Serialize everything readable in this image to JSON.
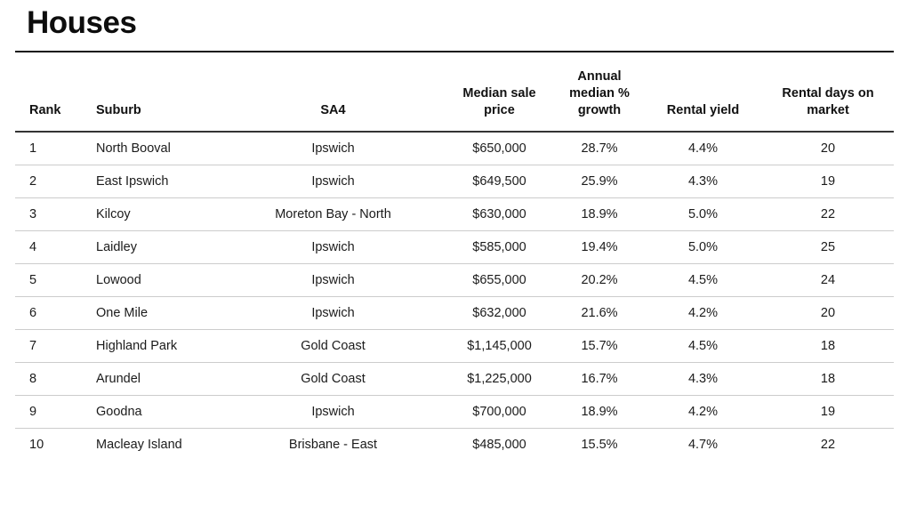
{
  "page": {
    "title": "Houses"
  },
  "colors": {
    "background": "#ffffff",
    "text": "#1b1b1b",
    "title_text": "#0d0d0d",
    "title_rule": "#161616",
    "header_rule": "#333333",
    "row_rule": "#cccccc"
  },
  "table": {
    "columns": [
      {
        "label": "Rank",
        "align": "left"
      },
      {
        "label": "Suburb",
        "align": "left"
      },
      {
        "label": "SA4",
        "align": "center"
      },
      {
        "label": "Median sale price",
        "align": "center"
      },
      {
        "label": "Annual median % growth",
        "align": "center"
      },
      {
        "label": "Rental yield",
        "align": "center"
      },
      {
        "label": "Rental days on market",
        "align": "center"
      }
    ],
    "rows": [
      [
        "1",
        "North Booval",
        "Ipswich",
        "$650,000",
        "28.7%",
        "4.4%",
        "20"
      ],
      [
        "2",
        "East Ipswich",
        "Ipswich",
        "$649,500",
        "25.9%",
        "4.3%",
        "19"
      ],
      [
        "3",
        "Kilcoy",
        "Moreton Bay - North",
        "$630,000",
        "18.9%",
        "5.0%",
        "22"
      ],
      [
        "4",
        "Laidley",
        "Ipswich",
        "$585,000",
        "19.4%",
        "5.0%",
        "25"
      ],
      [
        "5",
        "Lowood",
        "Ipswich",
        "$655,000",
        "20.2%",
        "4.5%",
        "24"
      ],
      [
        "6",
        "One Mile",
        "Ipswich",
        "$632,000",
        "21.6%",
        "4.2%",
        "20"
      ],
      [
        "7",
        "Highland Park",
        "Gold Coast",
        "$1,145,000",
        "15.7%",
        "4.5%",
        "18"
      ],
      [
        "8",
        "Arundel",
        "Gold Coast",
        "$1,225,000",
        "16.7%",
        "4.3%",
        "18"
      ],
      [
        "9",
        "Goodna",
        "Ipswich",
        "$700,000",
        "18.9%",
        "4.2%",
        "19"
      ],
      [
        "10",
        "Macleay Island",
        "Brisbane - East",
        "$485,000",
        "15.5%",
        "4.7%",
        "22"
      ]
    ]
  },
  "chart_data": {
    "type": "table",
    "title": "Houses",
    "columns": [
      "Rank",
      "Suburb",
      "SA4",
      "Median sale price",
      "Annual median % growth",
      "Rental yield",
      "Rental days on market"
    ],
    "rows": [
      [
        1,
        "North Booval",
        "Ipswich",
        650000,
        28.7,
        4.4,
        20
      ],
      [
        2,
        "East Ipswich",
        "Ipswich",
        649500,
        25.9,
        4.3,
        19
      ],
      [
        3,
        "Kilcoy",
        "Moreton Bay - North",
        630000,
        18.9,
        5.0,
        22
      ],
      [
        4,
        "Laidley",
        "Ipswich",
        585000,
        19.4,
        5.0,
        25
      ],
      [
        5,
        "Lowood",
        "Ipswich",
        655000,
        20.2,
        4.5,
        24
      ],
      [
        6,
        "One Mile",
        "Ipswich",
        632000,
        21.6,
        4.2,
        20
      ],
      [
        7,
        "Highland Park",
        "Gold Coast",
        1145000,
        15.7,
        4.5,
        18
      ],
      [
        8,
        "Arundel",
        "Gold Coast",
        1225000,
        16.7,
        4.3,
        18
      ],
      [
        9,
        "Goodna",
        "Ipswich",
        700000,
        18.9,
        4.2,
        19
      ],
      [
        10,
        "Macleay Island",
        "Brisbane - East",
        485000,
        15.5,
        4.7,
        22
      ]
    ],
    "units": {
      "Median sale price": "AUD $",
      "Annual median % growth": "%",
      "Rental yield": "%",
      "Rental days on market": "days"
    }
  }
}
